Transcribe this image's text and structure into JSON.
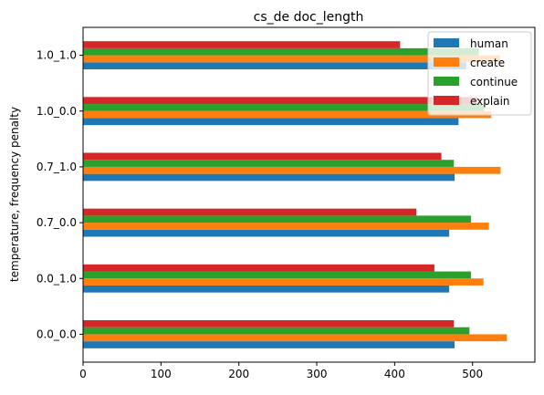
{
  "chart_data": {
    "type": "bar",
    "orientation": "horizontal",
    "title": "cs_de doc_length",
    "xlabel": "",
    "ylabel": "temperature, frequency penalty",
    "categories": [
      "0.0_0.0",
      "0.0_1.0",
      "0.7_0.0",
      "0.7_1.0",
      "1.0_0.0",
      "1.0_1.0"
    ],
    "xlim": [
      0,
      580
    ],
    "xticks": [
      0,
      100,
      200,
      300,
      400,
      500
    ],
    "grid": false,
    "legend_position": "top-right",
    "series": [
      {
        "name": "human",
        "color": "#1f77b4",
        "values": [
          477,
          470,
          470,
          477,
          482,
          492
        ]
      },
      {
        "name": "create",
        "color": "#ff7f0e",
        "values": [
          544,
          514,
          521,
          536,
          524,
          535
        ]
      },
      {
        "name": "continue",
        "color": "#2ca02c",
        "values": [
          496,
          498,
          498,
          476,
          515,
          508
        ]
      },
      {
        "name": "explain",
        "color": "#d62728",
        "values": [
          476,
          451,
          428,
          460,
          506,
          407
        ]
      }
    ]
  }
}
